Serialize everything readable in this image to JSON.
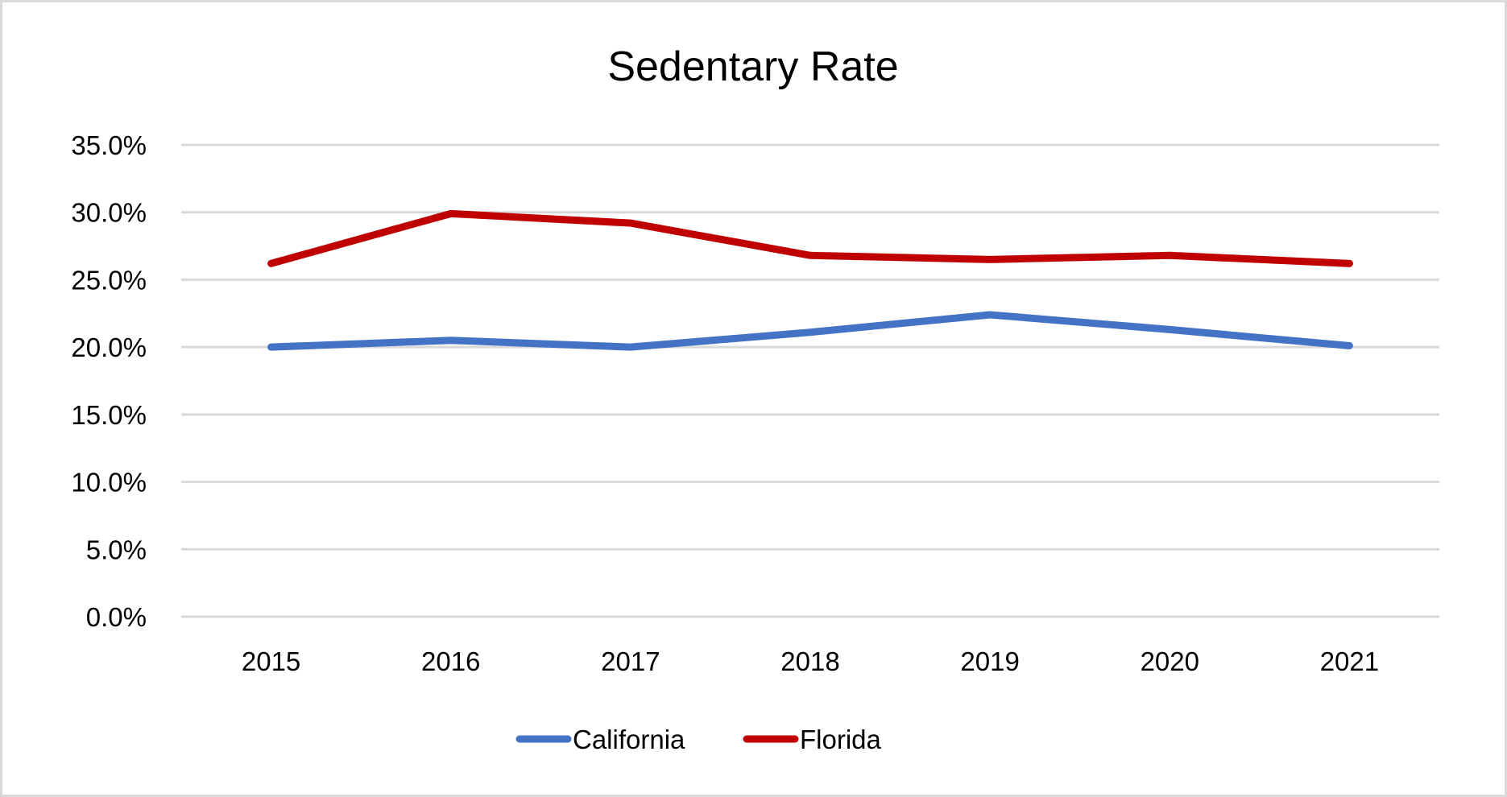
{
  "chart_data": {
    "type": "line",
    "title": "Sedentary Rate",
    "xlabel": "",
    "ylabel": "",
    "categories": [
      "2015",
      "2016",
      "2017",
      "2018",
      "2019",
      "2020",
      "2021"
    ],
    "series": [
      {
        "name": "California",
        "color": "#4472c4",
        "values": [
          20.0,
          20.5,
          20.0,
          21.1,
          22.4,
          21.3,
          20.1
        ]
      },
      {
        "name": "Florida",
        "color": "#c00000",
        "values": [
          26.2,
          29.9,
          29.2,
          26.8,
          26.5,
          26.8,
          26.2
        ]
      }
    ],
    "ylim": [
      0,
      35
    ],
    "yticks": [
      0,
      5,
      10,
      15,
      20,
      25,
      30,
      35
    ],
    "ytick_labels": [
      "0.0%",
      "5.0%",
      "10.0%",
      "15.0%",
      "20.0%",
      "25.0%",
      "30.0%",
      "35.0%"
    ],
    "grid": true,
    "legend_position": "bottom"
  }
}
